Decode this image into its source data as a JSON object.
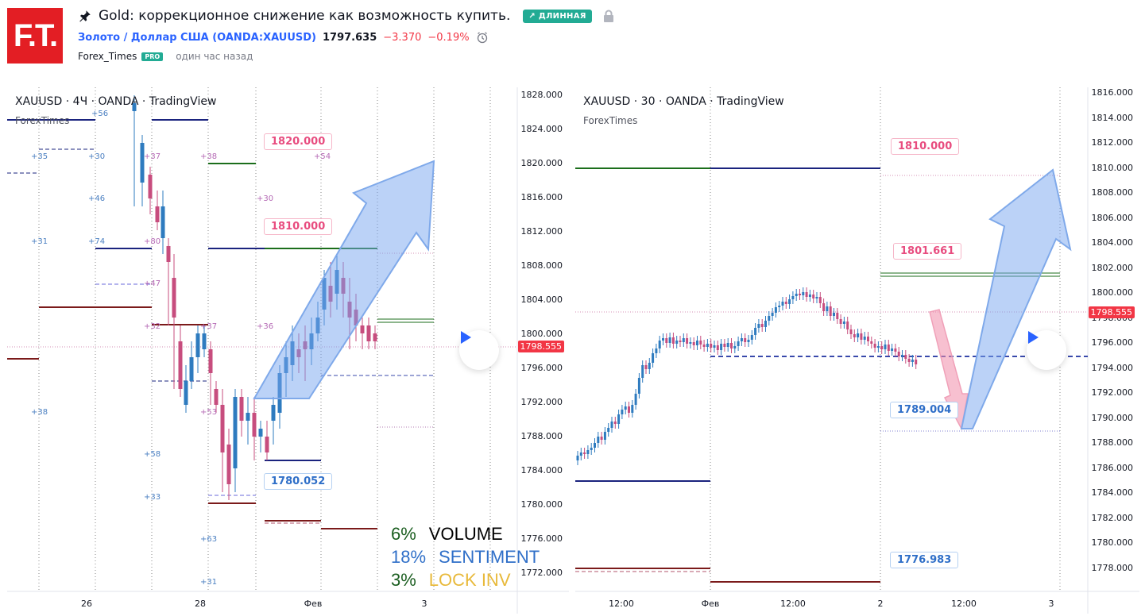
{
  "header": {
    "logo_text": "F.T.",
    "title": "Gold: коррекционное снижение как возможность купить.",
    "badge": "ДЛИННАЯ",
    "symbol_link": "Золото / Доллар США (OANDA:XAUUSD)",
    "price": "1797.635",
    "change": "−3.370",
    "change_pct": "−0.19%",
    "author": "Forex_Times",
    "author_badge": "PRO",
    "time_ago": "один час назад"
  },
  "left_chart": {
    "title": "XAUUSD · 4Ч · OANDA · TradingView",
    "subtitle": "ForexTimes",
    "price_labels": [
      "1828.000",
      "1824.000",
      "1820.000",
      "1816.000",
      "1812.000",
      "1808.000",
      "1804.000",
      "1800.000",
      "1796.000",
      "1792.000",
      "1788.000",
      "1784.000",
      "1780.000",
      "1776.000",
      "1772.000"
    ],
    "current_price": "1798.555",
    "time_labels": [
      "26",
      "28",
      "Фев",
      "3"
    ],
    "callouts": [
      "1820.000",
      "1810.000",
      "1780.052"
    ],
    "annotations": [
      "+56",
      "+35",
      "+30",
      "+37",
      "+38",
      "+54",
      "+46",
      "+30",
      "+31",
      "+74",
      "+80",
      "+47",
      "+32",
      "+37",
      "+36",
      "+38",
      "+53",
      "+58",
      "+33",
      "+63",
      "+31"
    ],
    "stats": [
      {
        "pct": "6%",
        "label": "VOLUME",
        "pct_color": "#1b5e20",
        "label_color": "#000000"
      },
      {
        "pct": "18%",
        "label": "SENTIMENT",
        "pct_color": "#2f6fc8",
        "label_color": "#2f6fc8"
      },
      {
        "pct": "3%",
        "label": "LOCK INV",
        "pct_color": "#1b5e20",
        "label_color": "#e8b93a"
      }
    ]
  },
  "right_chart": {
    "title": "XAUUSD · 30 · OANDA · TradingView",
    "subtitle": "ForexTimes",
    "price_labels": [
      "1816.000",
      "1814.000",
      "1812.000",
      "1810.000",
      "1808.000",
      "1806.000",
      "1804.000",
      "1802.000",
      "1800.000",
      "1798.000",
      "1796.000",
      "1794.000",
      "1792.000",
      "1790.000",
      "1788.000",
      "1786.000",
      "1784.000",
      "1782.000",
      "1780.000",
      "1778.000"
    ],
    "current_price": "1798.555",
    "time_labels": [
      "12:00",
      "Фев",
      "12:00",
      "2",
      "12:00",
      "3"
    ],
    "callouts": [
      "1810.000",
      "1801.661",
      "1789.004",
      "1776.983"
    ]
  },
  "colors": {
    "up": "#2e7bbf",
    "down": "#c74d7e",
    "navy": "#1a237e",
    "maroon": "#7b1a1a",
    "green": "#1b6e1b"
  }
}
